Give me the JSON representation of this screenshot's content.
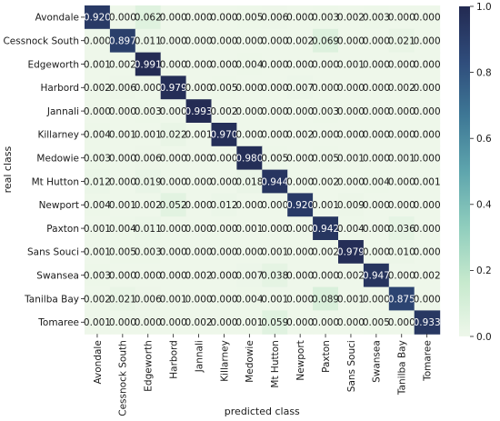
{
  "chart_data": {
    "type": "heatmap",
    "title": "",
    "xlabel": "predicted class",
    "ylabel": "real class",
    "rows": [
      "Avondale",
      "Cessnock South",
      "Edgeworth",
      "Harbord",
      "Jannali",
      "Killarney",
      "Medowie",
      "Mt Hutton",
      "Newport",
      "Paxton",
      "Sans Souci",
      "Swansea",
      "Tanilba Bay",
      "Tomaree"
    ],
    "columns": [
      "Avondale",
      "Cessnock South",
      "Edgeworth",
      "Harbord",
      "Jannali",
      "Killarney",
      "Medowie",
      "Mt Hutton",
      "Newport",
      "Paxton",
      "Sans Souci",
      "Swansea",
      "Tanilba Bay",
      "Tomaree"
    ],
    "values": [
      [
        0.92,
        0.0,
        0.062,
        0.0,
        0.0,
        0.0,
        0.005,
        0.006,
        0.0,
        0.003,
        0.002,
        0.003,
        0.0,
        0.0
      ],
      [
        0.0,
        0.897,
        0.011,
        0.0,
        0.0,
        0.0,
        0.0,
        0.0,
        0.002,
        0.069,
        0.0,
        0.0,
        0.021,
        0.0
      ],
      [
        0.001,
        0.002,
        0.991,
        0.0,
        0.0,
        0.0,
        0.004,
        0.0,
        0.0,
        0.0,
        0.001,
        0.0,
        0.0,
        0.0
      ],
      [
        0.002,
        0.006,
        0.0,
        0.979,
        0.0,
        0.005,
        0.0,
        0.0,
        0.007,
        0.0,
        0.0,
        0.0,
        0.002,
        0.0
      ],
      [
        0.0,
        0.0,
        0.003,
        0.0,
        0.993,
        0.002,
        0.0,
        0.0,
        0.0,
        0.003,
        0.0,
        0.0,
        0.0,
        0.0
      ],
      [
        0.004,
        0.001,
        0.001,
        0.022,
        0.001,
        0.97,
        0.0,
        0.0,
        0.002,
        0.0,
        0.0,
        0.0,
        0.0,
        0.0
      ],
      [
        0.003,
        0.0,
        0.006,
        0.0,
        0.0,
        0.0,
        0.98,
        0.005,
        0.0,
        0.005,
        0.001,
        0.0,
        0.001,
        0.0
      ],
      [
        0.012,
        0.0,
        0.019,
        0.0,
        0.0,
        0.0,
        0.018,
        0.944,
        0.0,
        0.002,
        0.0,
        0.004,
        0.0,
        0.001
      ],
      [
        0.004,
        0.001,
        0.002,
        0.052,
        0.0,
        0.012,
        0.0,
        0.0,
        0.92,
        0.001,
        0.009,
        0.0,
        0.0,
        0.0
      ],
      [
        0.001,
        0.004,
        0.011,
        0.0,
        0.0,
        0.0,
        0.001,
        0.0,
        0.0,
        0.942,
        0.004,
        0.0,
        0.036,
        0.0
      ],
      [
        0.001,
        0.005,
        0.003,
        0.0,
        0.0,
        0.0,
        0.0,
        0.001,
        0.0,
        0.002,
        0.979,
        0.0,
        0.01,
        0.0
      ],
      [
        0.003,
        0.0,
        0.0,
        0.0,
        0.002,
        0.0,
        0.007,
        0.038,
        0.0,
        0.0,
        0.002,
        0.947,
        0.0,
        0.002
      ],
      [
        0.002,
        0.021,
        0.006,
        0.001,
        0.0,
        0.0,
        0.004,
        0.001,
        0.0,
        0.089,
        0.001,
        0.0,
        0.875,
        0.0
      ],
      [
        0.001,
        0.0,
        0.0,
        0.0,
        0.002,
        0.0,
        0.001,
        0.059,
        0.0,
        0.0,
        0.0,
        0.005,
        0.0,
        0.933
      ]
    ],
    "value_range": [
      0.0,
      1.0
    ],
    "colorbar_ticks": [
      "0.0",
      "0.2",
      "0.4",
      "0.6",
      "0.8",
      "1.0"
    ],
    "colormap": [
      "#eef7ea",
      "#c6e9cd",
      "#8fcdbd",
      "#5ea5ad",
      "#3e7896",
      "#2f4c7b",
      "#232a52"
    ],
    "text_color_dark": "#1a1a1a",
    "text_color_light": "#ffffff",
    "grid": false,
    "legend": "colorbar-right"
  }
}
